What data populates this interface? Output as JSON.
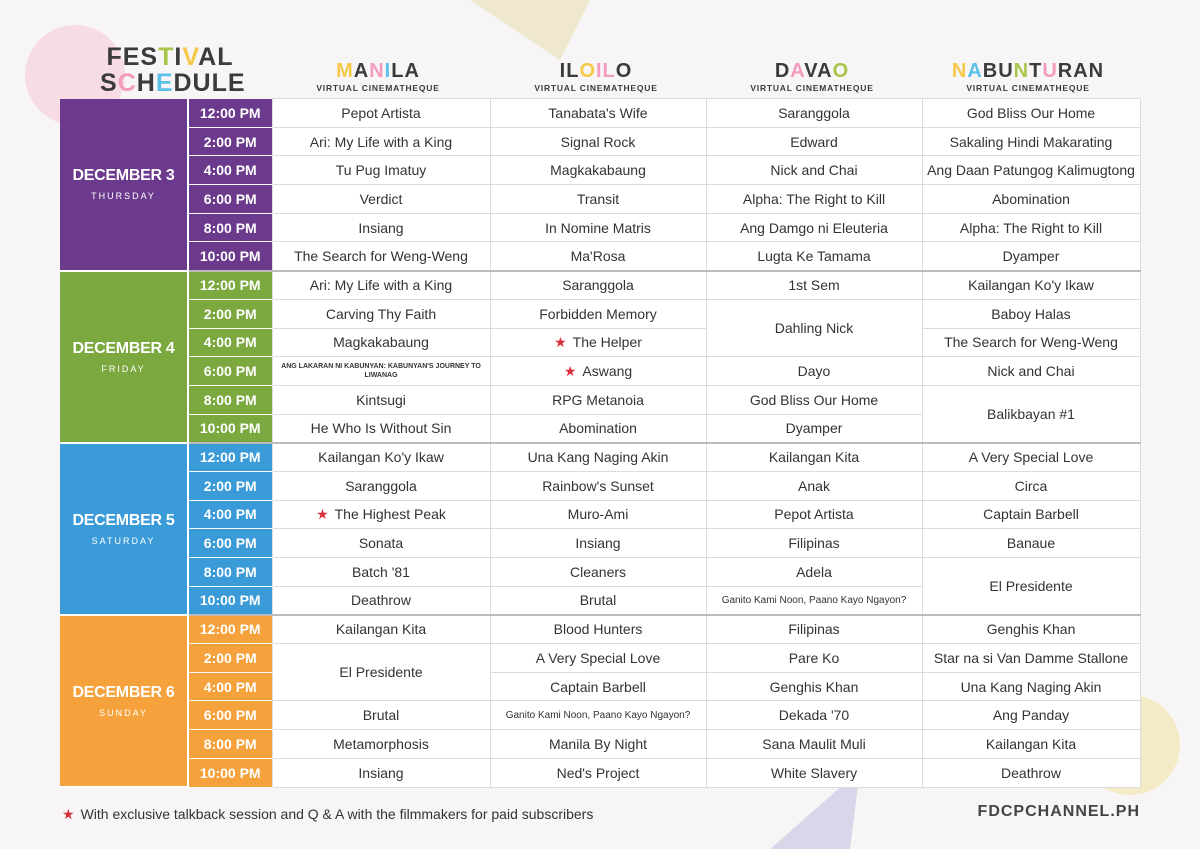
{
  "title": {
    "line1": [
      [
        "FES",
        "#3b3b3b"
      ],
      [
        "T",
        "#a8c64a"
      ],
      [
        "I",
        "#3b3b3b"
      ],
      [
        "V",
        "#f7c948"
      ],
      [
        "AL",
        "#3b3b3b"
      ]
    ],
    "line2": [
      [
        "S",
        "#3b3b3b"
      ],
      [
        "C",
        "#f29bbf"
      ],
      [
        "H",
        "#3b3b3b"
      ],
      [
        "E",
        "#5bc0e8"
      ],
      [
        "DULE",
        "#3b3b3b"
      ]
    ]
  },
  "venues": [
    {
      "name": [
        [
          "M",
          "#f7c948"
        ],
        [
          "A",
          "#3b3b3b"
        ],
        [
          "N",
          "#f29bbf"
        ],
        [
          "I",
          "#5bc0e8"
        ],
        [
          "LA",
          "#3b3b3b"
        ]
      ],
      "sub": "VIRTUAL CINEMATHEQUE"
    },
    {
      "name": [
        [
          "IL",
          "#3b3b3b"
        ],
        [
          "O",
          "#f7c948"
        ],
        [
          "IL",
          "#f29bbf"
        ],
        [
          "O",
          "#3b3b3b"
        ]
      ],
      "sub": "VIRTUAL CINEMATHEQUE"
    },
    {
      "name": [
        [
          "D",
          "#3b3b3b"
        ],
        [
          "A",
          "#f29bbf"
        ],
        [
          "VA",
          "#3b3b3b"
        ],
        [
          "O",
          "#a8c64a"
        ]
      ],
      "sub": "VIRTUAL CINEMATHEQUE"
    },
    {
      "name": [
        [
          "N",
          "#f7c948"
        ],
        [
          "A",
          "#5bc0e8"
        ],
        [
          "BU",
          "#3b3b3b"
        ],
        [
          "N",
          "#a8c64a"
        ],
        [
          "T",
          "#3b3b3b"
        ],
        [
          "U",
          "#f29bbf"
        ],
        [
          "RAN",
          "#3b3b3b"
        ]
      ],
      "sub": "VIRTUAL CINEMATHEQUE"
    }
  ],
  "times": [
    "12:00 PM",
    "2:00 PM",
    "4:00 PM",
    "6:00 PM",
    "8:00 PM",
    "10:00 PM"
  ],
  "days": [
    {
      "label": "DECEMBER 3",
      "weekday": "THURSDAY",
      "color": "#6b3a8c",
      "cols": [
        [
          {
            "t": "Pepot Artista"
          },
          {
            "t": "Ari: My Life with a King"
          },
          {
            "t": "Tu Pug Imatuy"
          },
          {
            "t": "Verdict"
          },
          {
            "t": "Insiang"
          },
          {
            "t": "The Search for Weng-Weng"
          }
        ],
        [
          {
            "t": "Tanabata's Wife"
          },
          {
            "t": "Signal Rock"
          },
          {
            "t": "Magkakabaung"
          },
          {
            "t": "Transit"
          },
          {
            "t": "In Nomine Matris"
          },
          {
            "t": "Ma'Rosa"
          }
        ],
        [
          {
            "t": "Saranggola"
          },
          {
            "t": "Edward"
          },
          {
            "t": "Nick and Chai"
          },
          {
            "t": "Alpha: The Right to Kill"
          },
          {
            "t": "Ang Damgo ni Eleuteria"
          },
          {
            "t": "Lugta Ke Tamama"
          }
        ],
        [
          {
            "t": "God Bliss Our Home"
          },
          {
            "t": "Sakaling Hindi Makarating"
          },
          {
            "t": "Ang Daan Patungog Kalimugtong"
          },
          {
            "t": "Abomination"
          },
          {
            "t": "Alpha: The Right to Kill"
          },
          {
            "t": "Dyamper"
          }
        ]
      ]
    },
    {
      "label": "DECEMBER 4",
      "weekday": "FRIDAY",
      "color": "#7ba83f",
      "cols": [
        [
          {
            "t": "Ari: My Life with a King"
          },
          {
            "t": "Carving Thy Faith"
          },
          {
            "t": "Magkakabaung"
          },
          {
            "t": "ANG LAKARAN NI KABUNYAN: KABUNYAN'S JOURNEY TO LIWANAG",
            "tiny": true
          },
          {
            "t": "Kintsugi"
          },
          {
            "t": "He Who Is Without Sin"
          }
        ],
        [
          {
            "t": "Saranggola"
          },
          {
            "t": "Forbidden Memory"
          },
          {
            "t": "The Helper",
            "star": true
          },
          {
            "t": "Aswang",
            "star": true
          },
          {
            "t": "RPG Metanoia"
          },
          {
            "t": "Abomination"
          }
        ],
        [
          {
            "t": "1st Sem"
          },
          {
            "t": "Dahling Nick",
            "span": 2
          },
          {
            "t": "Dayo"
          },
          {
            "t": "God Bliss Our Home"
          },
          {
            "t": "Dyamper"
          }
        ],
        [
          {
            "t": "Kailangan Ko'y Ikaw"
          },
          {
            "t": "Baboy Halas"
          },
          {
            "t": "The Search for Weng-Weng"
          },
          {
            "t": "Nick and Chai"
          },
          {
            "t": "Balikbayan #1",
            "span": 2
          }
        ]
      ]
    },
    {
      "label": "DECEMBER 5",
      "weekday": "SATURDAY",
      "color": "#3a9bd8",
      "cols": [
        [
          {
            "t": "Kailangan Ko'y Ikaw"
          },
          {
            "t": "Saranggola"
          },
          {
            "t": "The Highest Peak",
            "star": true
          },
          {
            "t": "Sonata"
          },
          {
            "t": "Batch '81"
          },
          {
            "t": "Deathrow"
          }
        ],
        [
          {
            "t": "Una Kang Naging Akin"
          },
          {
            "t": "Rainbow's Sunset"
          },
          {
            "t": "Muro-Ami"
          },
          {
            "t": "Insiang"
          },
          {
            "t": "Cleaners"
          },
          {
            "t": "Brutal"
          }
        ],
        [
          {
            "t": "Kailangan Kita"
          },
          {
            "t": "Anak"
          },
          {
            "t": "Pepot Artista"
          },
          {
            "t": "Filipinas"
          },
          {
            "t": "Adela"
          },
          {
            "t": "Ganito Kami Noon, Paano Kayo Ngayon?",
            "small": true
          }
        ],
        [
          {
            "t": "A Very Special Love"
          },
          {
            "t": "Circa"
          },
          {
            "t": "Captain Barbell"
          },
          {
            "t": "Banaue"
          },
          {
            "t": "El Presidente",
            "span": 2
          }
        ]
      ]
    },
    {
      "label": "DECEMBER 6",
      "weekday": "SUNDAY",
      "color": "#f5a23c",
      "cols": [
        [
          {
            "t": "Kailangan Kita"
          },
          {
            "t": "El Presidente",
            "span": 2
          },
          {
            "t": "Brutal"
          },
          {
            "t": "Metamorphosis"
          },
          {
            "t": "Insiang"
          }
        ],
        [
          {
            "t": "Blood Hunters"
          },
          {
            "t": "A Very Special Love"
          },
          {
            "t": "Captain Barbell"
          },
          {
            "t": "Ganito Kami Noon, Paano Kayo Ngayon?",
            "small": true
          },
          {
            "t": "Manila By Night"
          },
          {
            "t": "Ned's Project"
          }
        ],
        [
          {
            "t": "Filipinas"
          },
          {
            "t": "Pare Ko"
          },
          {
            "t": "Genghis Khan"
          },
          {
            "t": "Dekada '70"
          },
          {
            "t": "Sana Maulit Muli"
          },
          {
            "t": "White Slavery"
          }
        ],
        [
          {
            "t": "Genghis Khan"
          },
          {
            "t": "Star na si Van Damme Stallone"
          },
          {
            "t": "Una Kang Naging Akin"
          },
          {
            "t": "Ang Panday"
          },
          {
            "t": "Kailangan Kita"
          },
          {
            "t": "Deathrow"
          }
        ]
      ]
    }
  ],
  "footer": {
    "note": "With exclusive talkback session and Q & A with the filmmakers for paid subscribers",
    "site": "FDCPCHANNEL.PH",
    "star_color": "#d8303a"
  }
}
